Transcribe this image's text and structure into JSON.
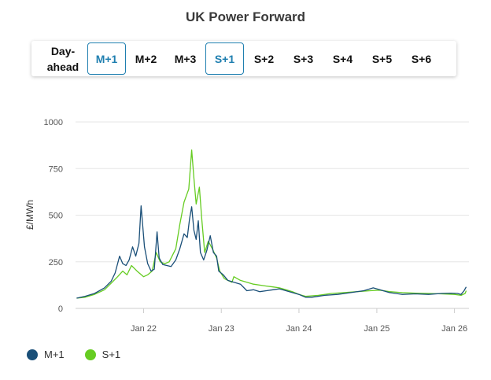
{
  "title": "UK Power Forward",
  "tabs": [
    {
      "label": "Day-ahead",
      "active": false
    },
    {
      "label": "M+1",
      "active": true
    },
    {
      "label": "M+2",
      "active": false
    },
    {
      "label": "M+3",
      "active": false
    },
    {
      "label": "S+1",
      "active": true
    },
    {
      "label": "S+2",
      "active": false
    },
    {
      "label": "S+3",
      "active": false
    },
    {
      "label": "S+4",
      "active": false
    },
    {
      "label": "S+5",
      "active": false
    },
    {
      "label": "S+6",
      "active": false
    }
  ],
  "colors": {
    "m1": "#1a4f78",
    "s1": "#66cc22",
    "grid": "#e6e6e6",
    "active_tab": "#1f7fb0"
  },
  "chart_data": {
    "type": "line",
    "title": "UK Power Forward",
    "ylabel": "£/MWh",
    "xlabel": "",
    "ylim": [
      0,
      1000
    ],
    "xlim": [
      "2021-02-15",
      "2026-03-10"
    ],
    "yticks": [
      0,
      250,
      500,
      750,
      1000
    ],
    "xticks": [
      {
        "label": "Jan 22",
        "date": "2022-01-01"
      },
      {
        "label": "Jan 23",
        "date": "2023-01-01"
      },
      {
        "label": "Jan 24",
        "date": "2024-01-01"
      },
      {
        "label": "Jan 25",
        "date": "2025-01-01"
      },
      {
        "label": "Jan 26",
        "date": "2026-01-01"
      }
    ],
    "grid": true,
    "legend_position": "bottom-left",
    "series": [
      {
        "name": "M+1",
        "points": [
          [
            "2021-02-20",
            55
          ],
          [
            "2021-04-01",
            65
          ],
          [
            "2021-05-15",
            80
          ],
          [
            "2021-07-01",
            110
          ],
          [
            "2021-08-01",
            145
          ],
          [
            "2021-08-20",
            190
          ],
          [
            "2021-09-10",
            280
          ],
          [
            "2021-09-25",
            240
          ],
          [
            "2021-10-10",
            230
          ],
          [
            "2021-10-25",
            260
          ],
          [
            "2021-11-10",
            330
          ],
          [
            "2021-11-25",
            280
          ],
          [
            "2021-12-10",
            350
          ],
          [
            "2021-12-20",
            550
          ],
          [
            "2022-01-05",
            330
          ],
          [
            "2022-01-20",
            240
          ],
          [
            "2022-02-05",
            200
          ],
          [
            "2022-02-20",
            210
          ],
          [
            "2022-03-05",
            410
          ],
          [
            "2022-03-15",
            270
          ],
          [
            "2022-04-01",
            235
          ],
          [
            "2022-04-20",
            230
          ],
          [
            "2022-05-10",
            225
          ],
          [
            "2022-06-01",
            260
          ],
          [
            "2022-06-20",
            320
          ],
          [
            "2022-07-10",
            400
          ],
          [
            "2022-07-25",
            380
          ],
          [
            "2022-08-05",
            480
          ],
          [
            "2022-08-15",
            545
          ],
          [
            "2022-08-25",
            420
          ],
          [
            "2022-09-05",
            370
          ],
          [
            "2022-09-15",
            470
          ],
          [
            "2022-09-25",
            300
          ],
          [
            "2022-10-10",
            260
          ],
          [
            "2022-10-25",
            310
          ],
          [
            "2022-11-10",
            390
          ],
          [
            "2022-11-25",
            300
          ],
          [
            "2022-12-10",
            280
          ],
          [
            "2022-12-20",
            200
          ],
          [
            "2023-01-10",
            180
          ],
          [
            "2023-02-01",
            150
          ],
          [
            "2023-03-01",
            140
          ],
          [
            "2023-04-01",
            130
          ],
          [
            "2023-05-01",
            95
          ],
          [
            "2023-06-01",
            100
          ],
          [
            "2023-07-01",
            90
          ],
          [
            "2023-08-01",
            95
          ],
          [
            "2023-09-01",
            100
          ],
          [
            "2023-10-01",
            105
          ],
          [
            "2023-11-01",
            95
          ],
          [
            "2023-12-01",
            85
          ],
          [
            "2024-01-01",
            75
          ],
          [
            "2024-02-01",
            60
          ],
          [
            "2024-03-01",
            60
          ],
          [
            "2024-05-01",
            70
          ],
          [
            "2024-07-01",
            75
          ],
          [
            "2024-09-01",
            85
          ],
          [
            "2024-11-01",
            95
          ],
          [
            "2024-12-15",
            110
          ],
          [
            "2025-01-15",
            100
          ],
          [
            "2025-03-01",
            85
          ],
          [
            "2025-05-01",
            75
          ],
          [
            "2025-07-01",
            78
          ],
          [
            "2025-09-01",
            75
          ],
          [
            "2025-11-01",
            80
          ],
          [
            "2025-12-15",
            82
          ],
          [
            "2026-01-15",
            80
          ],
          [
            "2026-02-01",
            75
          ],
          [
            "2026-02-15",
            95
          ],
          [
            "2026-02-25",
            115
          ]
        ]
      },
      {
        "name": "S+1",
        "points": [
          [
            "2021-02-20",
            55
          ],
          [
            "2021-04-01",
            60
          ],
          [
            "2021-05-15",
            75
          ],
          [
            "2021-07-01",
            100
          ],
          [
            "2021-08-01",
            135
          ],
          [
            "2021-09-01",
            170
          ],
          [
            "2021-09-25",
            200
          ],
          [
            "2021-10-15",
            180
          ],
          [
            "2021-11-05",
            230
          ],
          [
            "2021-12-01",
            200
          ],
          [
            "2022-01-01",
            170
          ],
          [
            "2022-01-20",
            180
          ],
          [
            "2022-02-10",
            200
          ],
          [
            "2022-03-01",
            300
          ],
          [
            "2022-03-20",
            250
          ],
          [
            "2022-04-10",
            240
          ],
          [
            "2022-05-01",
            250
          ],
          [
            "2022-06-01",
            320
          ],
          [
            "2022-06-20",
            450
          ],
          [
            "2022-07-10",
            570
          ],
          [
            "2022-08-01",
            640
          ],
          [
            "2022-08-15",
            850
          ],
          [
            "2022-08-25",
            700
          ],
          [
            "2022-09-05",
            560
          ],
          [
            "2022-09-20",
            650
          ],
          [
            "2022-10-01",
            480
          ],
          [
            "2022-10-15",
            300
          ],
          [
            "2022-11-01",
            360
          ],
          [
            "2022-11-20",
            320
          ],
          [
            "2022-12-10",
            270
          ],
          [
            "2022-12-25",
            200
          ],
          [
            "2023-01-15",
            160
          ],
          [
            "2023-02-01",
            150
          ],
          [
            "2023-02-20",
            140
          ],
          [
            "2023-03-01",
            170
          ],
          [
            "2023-04-01",
            150
          ],
          [
            "2023-05-01",
            140
          ],
          [
            "2023-06-01",
            130
          ],
          [
            "2023-07-01",
            125
          ],
          [
            "2023-08-01",
            120
          ],
          [
            "2023-09-01",
            115
          ],
          [
            "2023-10-01",
            110
          ],
          [
            "2023-11-01",
            100
          ],
          [
            "2023-12-01",
            90
          ],
          [
            "2024-01-01",
            75
          ],
          [
            "2024-02-01",
            65
          ],
          [
            "2024-04-01",
            70
          ],
          [
            "2024-06-01",
            80
          ],
          [
            "2024-08-01",
            85
          ],
          [
            "2024-10-01",
            90
          ],
          [
            "2024-12-01",
            95
          ],
          [
            "2025-01-15",
            98
          ],
          [
            "2025-03-01",
            90
          ],
          [
            "2025-05-01",
            85
          ],
          [
            "2025-07-01",
            82
          ],
          [
            "2025-09-01",
            80
          ],
          [
            "2025-11-01",
            78
          ],
          [
            "2026-01-01",
            75
          ],
          [
            "2026-02-01",
            70
          ],
          [
            "2026-02-20",
            80
          ],
          [
            "2026-02-25",
            95
          ]
        ]
      }
    ]
  },
  "legend": [
    {
      "label": "M+1",
      "color": "#1a4f78"
    },
    {
      "label": "S+1",
      "color": "#66cc22"
    }
  ]
}
